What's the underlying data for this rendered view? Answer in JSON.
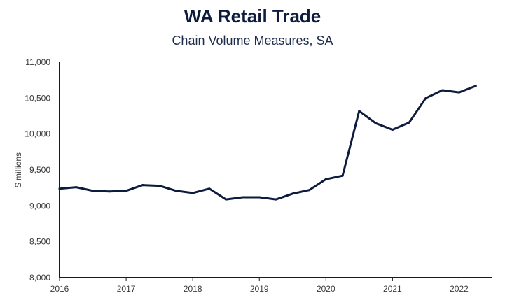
{
  "chart_data": {
    "type": "line",
    "title": "WA Retail Trade",
    "subtitle": "Chain Volume Measures, SA",
    "xlabel": "",
    "ylabel": "$ millions",
    "ylim": [
      8000,
      11000
    ],
    "y_ticks": [
      "8,000",
      "8,500",
      "9,000",
      "9,500",
      "10,000",
      "10,500",
      "11,000"
    ],
    "x_ticks": [
      "2016",
      "2017",
      "2018",
      "2019",
      "2020",
      "2021",
      "2022"
    ],
    "grid": false,
    "colors": {
      "line": "#0d1b3d",
      "axis": "#1a1a1a"
    },
    "series": [
      {
        "x": [
          "2016 Q1",
          "2016 Q2",
          "2016 Q3",
          "2016 Q4",
          "2017 Q1",
          "2017 Q2",
          "2017 Q3",
          "2017 Q4",
          "2018 Q1",
          "2018 Q2",
          "2018 Q3",
          "2018 Q4",
          "2019 Q1",
          "2019 Q2",
          "2019 Q3",
          "2019 Q4",
          "2020 Q1",
          "2020 Q2",
          "2020 Q3",
          "2020 Q4",
          "2021 Q1",
          "2021 Q2",
          "2021 Q3",
          "2021 Q4",
          "2022 Q1",
          "2022 Q2"
        ],
        "values": [
          9240,
          9260,
          9210,
          9200,
          9210,
          9290,
          9280,
          9210,
          9180,
          9240,
          9090,
          9120,
          9120,
          9090,
          9170,
          9220,
          9370,
          9420,
          10320,
          10150,
          10060,
          10160,
          10500,
          10610,
          10580,
          10670
        ]
      }
    ]
  }
}
